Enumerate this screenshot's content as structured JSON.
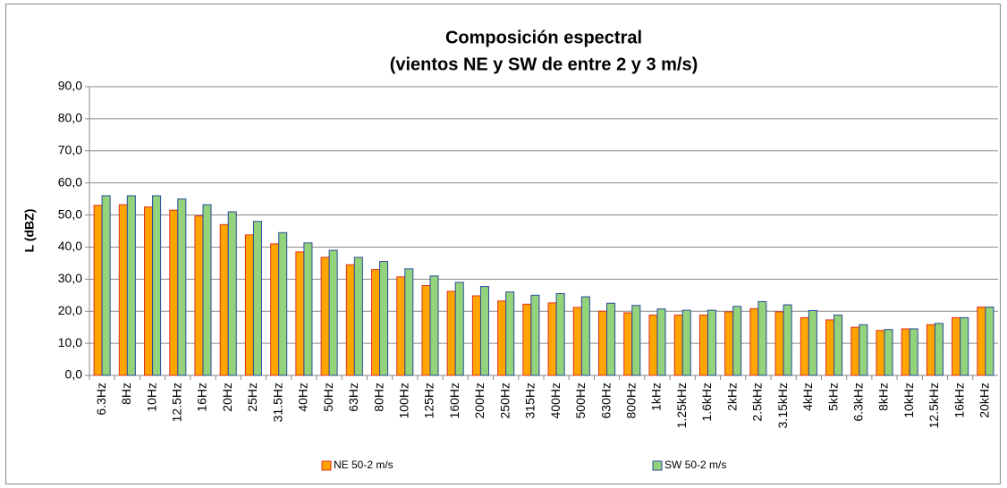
{
  "chart_data": {
    "type": "bar",
    "title": "Composición espectral",
    "subtitle": "(vientos NE y SW de  entre 2 y 3 m/s)",
    "y_label": "L (dBZ)",
    "categories": [
      "6.3Hz",
      "8Hz",
      "10Hz",
      "12.5Hz",
      "16Hz",
      "20Hz",
      "25Hz",
      "31.5Hz",
      "40Hz",
      "50Hz",
      "63Hz",
      "80Hz",
      "100Hz",
      "125Hz",
      "160Hz",
      "200Hz",
      "250Hz",
      "315Hz",
      "400Hz",
      "500Hz",
      "630Hz",
      "800Hz",
      "1kHz",
      "1.25kHz",
      "1.6kHz",
      "2kHz",
      "2.5kHz",
      "3.15kHz",
      "4kHz",
      "5kHz",
      "6.3kHz",
      "8kHz",
      "10kHz",
      "12.5kHz",
      "16kHz",
      "20kHz"
    ],
    "series": [
      {
        "name": "NE 50-2 m/s",
        "color": "#ffa500",
        "edge": "#e03020",
        "values": [
          53,
          53.2,
          52.5,
          51.5,
          49.7,
          47,
          43.8,
          41,
          38.5,
          36.8,
          34.5,
          33,
          30.7,
          28,
          26.2,
          24.8,
          23.2,
          22.2,
          22.6,
          21.2,
          20,
          19.5,
          18.8,
          18.8,
          18.8,
          19.8,
          20.8,
          19.8,
          18,
          17.3,
          15,
          14,
          14.5,
          15.8,
          18,
          21.3
        ]
      },
      {
        "name": "SW 50-2 m/s",
        "color": "#92d37c",
        "edge": "#2a4a9a",
        "values": [
          56,
          56,
          56,
          55,
          53.2,
          51,
          48,
          44.5,
          41.3,
          39,
          36.8,
          35.5,
          33.2,
          31,
          29,
          27.7,
          26,
          25,
          25.5,
          24.5,
          22.5,
          21.8,
          20.7,
          20.3,
          20.3,
          21.5,
          23,
          22,
          20.2,
          18.8,
          15.8,
          14.3,
          14.5,
          16.2,
          18,
          21.3
        ]
      }
    ],
    "ylim": [
      0,
      90
    ],
    "yticks": [
      {
        "value": 0,
        "label": "0,0"
      },
      {
        "value": 10,
        "label": "10,0"
      },
      {
        "value": 20,
        "label": "20,0"
      },
      {
        "value": 30,
        "label": "30,0"
      },
      {
        "value": 40,
        "label": "40,0"
      },
      {
        "value": 50,
        "label": "50,0"
      },
      {
        "value": 60,
        "label": "60,0"
      },
      {
        "value": 70,
        "label": "70,0"
      },
      {
        "value": 80,
        "label": "80,0"
      },
      {
        "value": 90,
        "label": "90,0"
      }
    ],
    "grid": true
  }
}
